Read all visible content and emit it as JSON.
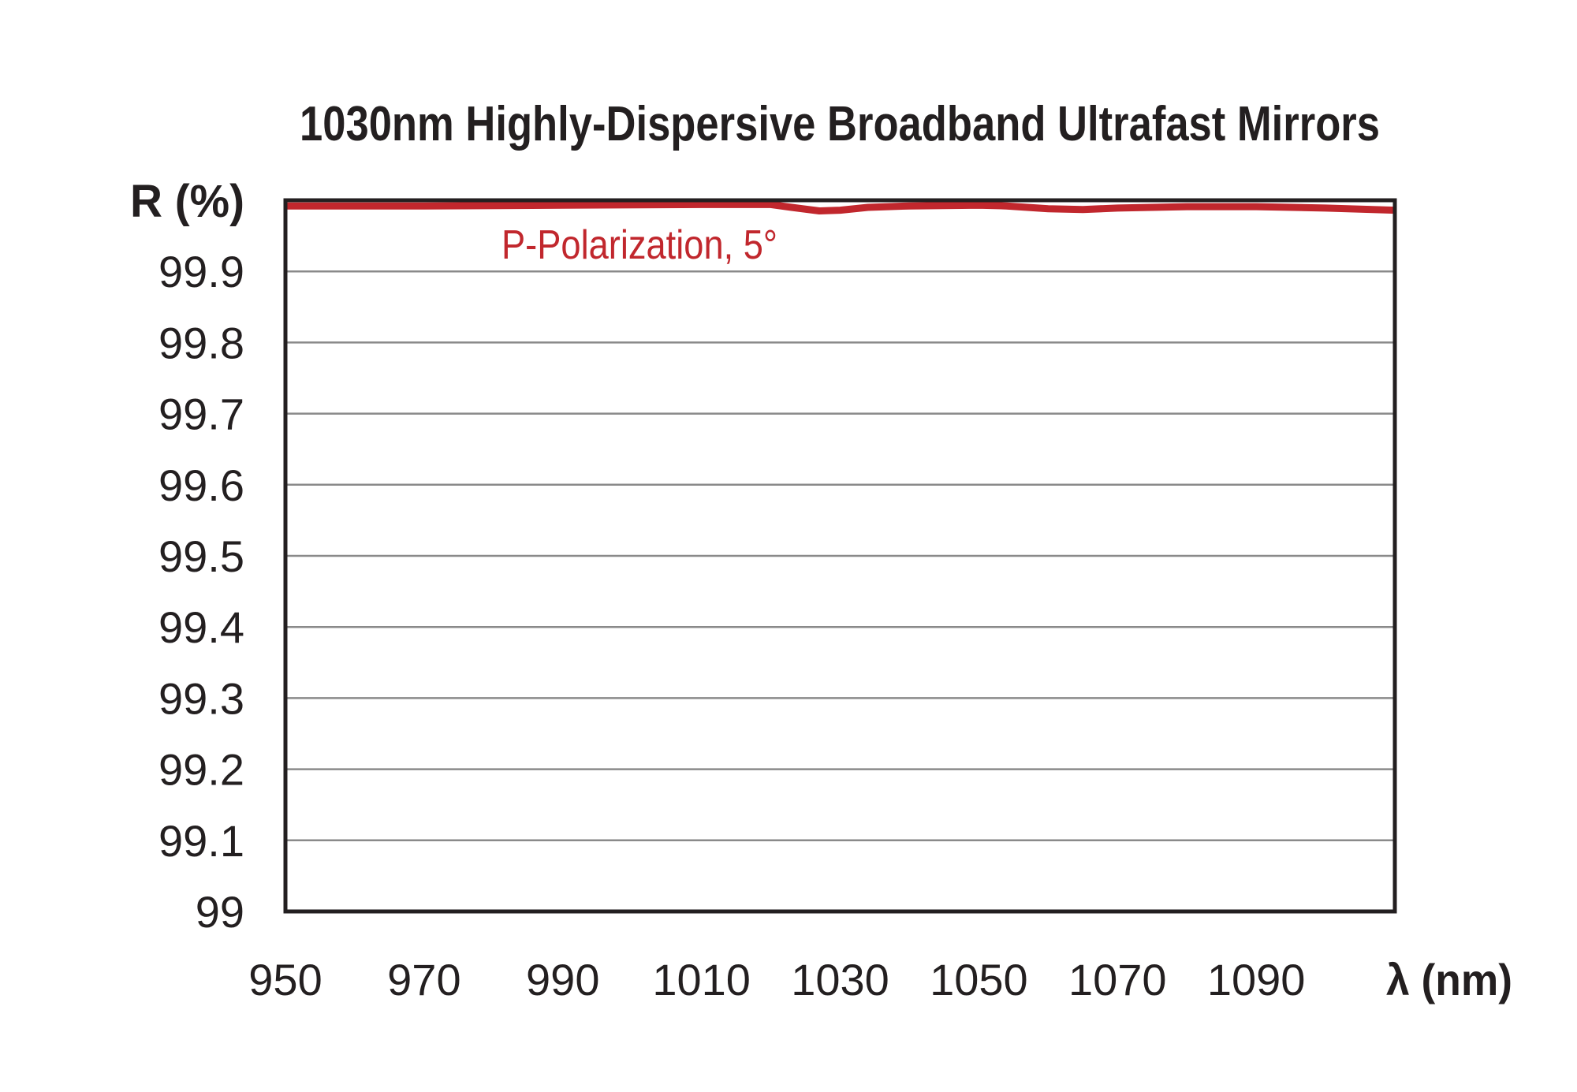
{
  "chart_data": {
    "type": "line",
    "title": "1030nm Highly-Dispersive Broadband Ultrafast Mirrors",
    "xlabel": "λ (nm)",
    "ylabel": "R (%)",
    "xlim": [
      950,
      1110
    ],
    "ylim": [
      99,
      100
    ],
    "xticks": [
      950,
      970,
      990,
      1010,
      1030,
      1050,
      1070,
      1090
    ],
    "yticks": [
      99,
      99.1,
      99.2,
      99.3,
      99.4,
      99.5,
      99.6,
      99.7,
      99.8,
      99.9
    ],
    "ytick_labels": [
      "99",
      "99.1",
      "99.2",
      "99.3",
      "99.4",
      "99.5",
      "99.6",
      "99.7",
      "99.8",
      "99.9"
    ],
    "grid": true,
    "series": [
      {
        "name": "P-Polarization, 5°",
        "color": "#c1272d",
        "x": [
          950,
          970,
          990,
          1010,
          1020,
          1023,
          1027,
          1030,
          1034,
          1040,
          1050,
          1054,
          1060,
          1065,
          1070,
          1080,
          1090,
          1100,
          1110
        ],
        "y": [
          99.992,
          99.992,
          99.993,
          99.994,
          99.994,
          99.99,
          99.985,
          99.986,
          99.99,
          99.992,
          99.993,
          99.992,
          99.988,
          99.987,
          99.989,
          99.991,
          99.991,
          99.989,
          99.986
        ]
      }
    ]
  }
}
